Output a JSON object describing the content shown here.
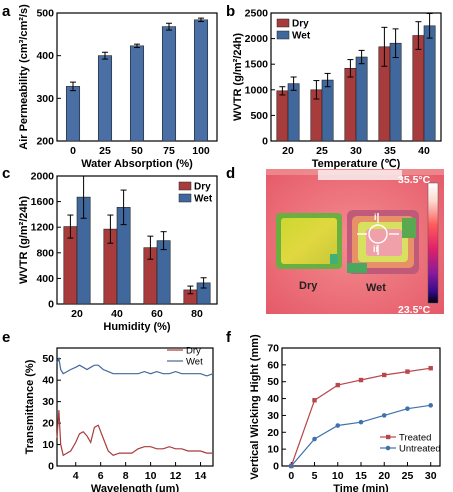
{
  "panels": {
    "a": "a",
    "b": "b",
    "c": "c",
    "d": "d",
    "e": "e",
    "f": "f"
  },
  "colors": {
    "primary_bar": "#4a6fa5",
    "dry": "#a83c3c",
    "wet": "#41689c",
    "treated": "#b9464b",
    "untreated": "#3f72aa"
  },
  "thermal": {
    "max_label": "35.5°C",
    "min_label": "23.5°C",
    "dry_label": "Dry",
    "wet_label": "Wet",
    "marker_i": "i",
    "marker_ii": "ii"
  },
  "chart_data": [
    {
      "panel": "a",
      "type": "bar",
      "categories": [
        "0",
        "25",
        "50",
        "75",
        "100"
      ],
      "values": [
        328,
        400,
        423,
        468,
        484
      ],
      "errors": [
        10,
        8,
        4,
        8,
        4
      ],
      "xlabel": "Water Absorption (%)",
      "ylabel": "Air Permeability (cm³/cm²/s)",
      "ylim": [
        200,
        500
      ],
      "yticks": [
        200,
        300,
        400,
        500
      ],
      "grid": false
    },
    {
      "panel": "b",
      "type": "bar",
      "categories": [
        "20",
        "25",
        "30",
        "35",
        "40"
      ],
      "series": [
        {
          "name": "Dry",
          "values": [
            980,
            1000,
            1420,
            1840,
            2060
          ],
          "errors": [
            80,
            180,
            170,
            380,
            270
          ]
        },
        {
          "name": "Wet",
          "values": [
            1120,
            1190,
            1640,
            1910,
            2250
          ],
          "errors": [
            130,
            130,
            130,
            280,
            240
          ]
        }
      ],
      "xlabel": "Temperature (℃)",
      "ylabel": "WVTR (g/m²/24h)",
      "ylim": [
        0,
        2500
      ],
      "yticks": [
        0,
        500,
        1000,
        1500,
        2000,
        2500
      ],
      "legend": "top-left"
    },
    {
      "panel": "c",
      "type": "bar",
      "categories": [
        "20",
        "40",
        "60",
        "80"
      ],
      "series": [
        {
          "name": "Dry",
          "values": [
            1210,
            1170,
            880,
            220
          ],
          "errors": [
            180,
            220,
            180,
            60
          ]
        },
        {
          "name": "Wet",
          "values": [
            1670,
            1510,
            990,
            330
          ],
          "errors": [
            330,
            270,
            140,
            80
          ]
        }
      ],
      "xlabel": "Humidity (%)",
      "ylabel": "WVTR (g/m²/24h)",
      "ylim": [
        0,
        2000
      ],
      "yticks": [
        0,
        400,
        800,
        1200,
        1600,
        2000
      ],
      "legend": "top-right"
    },
    {
      "panel": "e",
      "type": "line",
      "xlabel": "Wavelength (μm)",
      "ylabel": "Transmittance (%)",
      "xlim": [
        2.5,
        15
      ],
      "ylim": [
        0,
        55
      ],
      "xticks": [
        4,
        6,
        8,
        10,
        12,
        14
      ],
      "yticks": [
        0,
        10,
        20,
        30,
        40,
        50
      ],
      "series": [
        {
          "name": "Dry",
          "x": [
            2.5,
            2.65,
            2.8,
            3.0,
            3.3,
            3.6,
            4.0,
            4.3,
            4.6,
            4.9,
            5.2,
            5.5,
            5.8,
            6.2,
            6.6,
            7.0,
            7.5,
            8.0,
            8.5,
            9.0,
            9.5,
            10.0,
            10.5,
            11.0,
            11.5,
            12.0,
            12.5,
            13.0,
            13.5,
            14.0,
            14.5,
            15.0
          ],
          "y": [
            13,
            26,
            10,
            5,
            6,
            7,
            11,
            15,
            16,
            14,
            11,
            18,
            19,
            13,
            7,
            5,
            6,
            6,
            6,
            8,
            9,
            9,
            8,
            8,
            9,
            8,
            8,
            7,
            7,
            7,
            6,
            6
          ]
        },
        {
          "name": "Wet",
          "x": [
            2.5,
            2.65,
            2.8,
            3.0,
            3.3,
            3.6,
            4.0,
            4.3,
            4.6,
            4.9,
            5.2,
            5.5,
            5.8,
            6.2,
            6.6,
            7.0,
            7.5,
            8.0,
            8.5,
            9.0,
            9.5,
            10.0,
            10.5,
            11.0,
            11.5,
            12.0,
            12.5,
            13.0,
            13.5,
            14.0,
            14.5,
            15.0
          ],
          "y": [
            48,
            50,
            45,
            43,
            44,
            45,
            46,
            47,
            46,
            45,
            46,
            47,
            47,
            45,
            44,
            43,
            43,
            43,
            43,
            43,
            44,
            43,
            44,
            43,
            43,
            44,
            43,
            43,
            43,
            43,
            42,
            43
          ]
        }
      ],
      "legend": "top-right"
    },
    {
      "panel": "f",
      "type": "line",
      "xlabel": "Time (min)",
      "ylabel": "Vertical Wicking Hight (mm)",
      "xlim": [
        -2,
        32
      ],
      "ylim": [
        0,
        70
      ],
      "xticks": [
        0,
        5,
        10,
        15,
        20,
        25,
        30
      ],
      "yticks": [
        0,
        10,
        20,
        30,
        40,
        50,
        60,
        70
      ],
      "series": [
        {
          "name": "Treated",
          "x": [
            0,
            5,
            10,
            15,
            20,
            25,
            30
          ],
          "y": [
            0,
            39,
            48,
            51,
            54,
            56,
            58
          ]
        },
        {
          "name": "Untreated",
          "x": [
            0,
            5,
            10,
            15,
            20,
            25,
            30
          ],
          "y": [
            0,
            16,
            24,
            26,
            30,
            34,
            36
          ]
        }
      ],
      "legend": "bottom-right"
    }
  ]
}
